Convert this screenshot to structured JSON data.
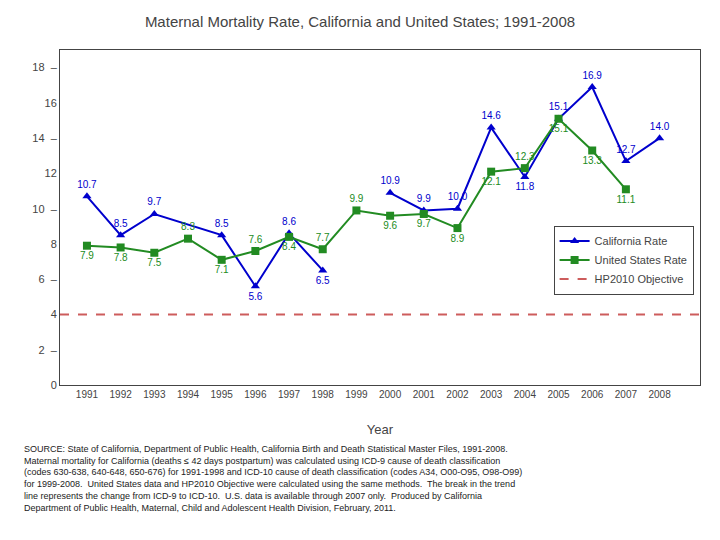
{
  "chart_data": {
    "type": "line",
    "title": "Maternal Mortality Rate, California and United States; 1991-2008",
    "x_label": "Year",
    "xlim": [
      1990.2,
      2009.2
    ],
    "xticks": [
      1991,
      1992,
      1993,
      1994,
      1995,
      1996,
      1997,
      1998,
      1999,
      2000,
      2001,
      2002,
      2003,
      2004,
      2005,
      2006,
      2007,
      2008
    ],
    "ylim": [
      0,
      19
    ],
    "yticks": [
      0,
      {
        "value": 2,
        "label": "2  –"
      },
      4,
      {
        "value": 6,
        "label": "6  –"
      },
      8,
      {
        "value": 10,
        "label": "10  –"
      },
      12,
      {
        "value": 14,
        "label": "14  –"
      },
      16,
      {
        "value": 18,
        "label": "18  –"
      }
    ],
    "grid": false,
    "legend": "lower right",
    "data_labels": true,
    "series": [
      {
        "name": "California Rate",
        "color": "#0000CD",
        "marker": "triangle",
        "line_style": "solid",
        "x": [
          1991,
          1992,
          1993,
          1995,
          1996,
          1997,
          1998,
          1999,
          2000,
          2001,
          2002,
          2003,
          2004,
          2005,
          2006,
          2007,
          2008
        ],
        "values": [
          10.7,
          8.5,
          9.7,
          8.5,
          5.6,
          8.6,
          6.5,
          null,
          10.9,
          9.9,
          10.0,
          14.6,
          11.8,
          15.1,
          16.9,
          12.7,
          14.0
        ],
        "value_labels": [
          "10.7",
          "8.5",
          "9.7",
          "8.5",
          "5.6",
          "8.6",
          "6.5",
          null,
          "10.9",
          "9.9",
          "10.0",
          "14.6",
          "11.8",
          "15.1",
          "16.9",
          "12.7",
          "14.0"
        ]
      },
      {
        "name": "United States Rate",
        "color": "#228B22",
        "marker": "square",
        "line_style": "solid",
        "x": [
          1991,
          1992,
          1993,
          1994,
          1995,
          1996,
          1997,
          1998,
          1999,
          2000,
          2001,
          2002,
          2003,
          2004,
          2005,
          2006,
          2007
        ],
        "values": [
          7.9,
          7.8,
          7.5,
          8.3,
          7.1,
          7.6,
          8.4,
          7.7,
          9.9,
          9.6,
          9.7,
          8.9,
          12.1,
          12.3,
          15.1,
          13.3,
          11.1
        ]
      },
      {
        "name": "HP2010 Objective",
        "type": "hline",
        "color": "#CD5C5C",
        "line_style": "dashed",
        "values": [
          4.0
        ]
      }
    ],
    "annotations": [
      "SOURCE: State of California, Department of Public Health, California Birth and Death Statistical Master Files, 1991-2008.",
      "Maternal mortality for California (deaths ≤ 42 days postpartum) was calculated using ICD-9 cause of death classification",
      "(codes 630-638, 640-648, 650-676) for 1991-1998 and ICD-10 cause of death classification (codes A34, O00-O95, O98-O99)",
      "for 1999-2008.  United States data and HP2010 Objective were calculated using the same methods.  The break in the trend",
      "line represents the change from ICD-9 to ICD-10.  U.S. data is available through 2007 only.  Produced by California",
      "Department of Public Health, Maternal, Child and Adolescent Health Division, February, 2011."
    ]
  }
}
